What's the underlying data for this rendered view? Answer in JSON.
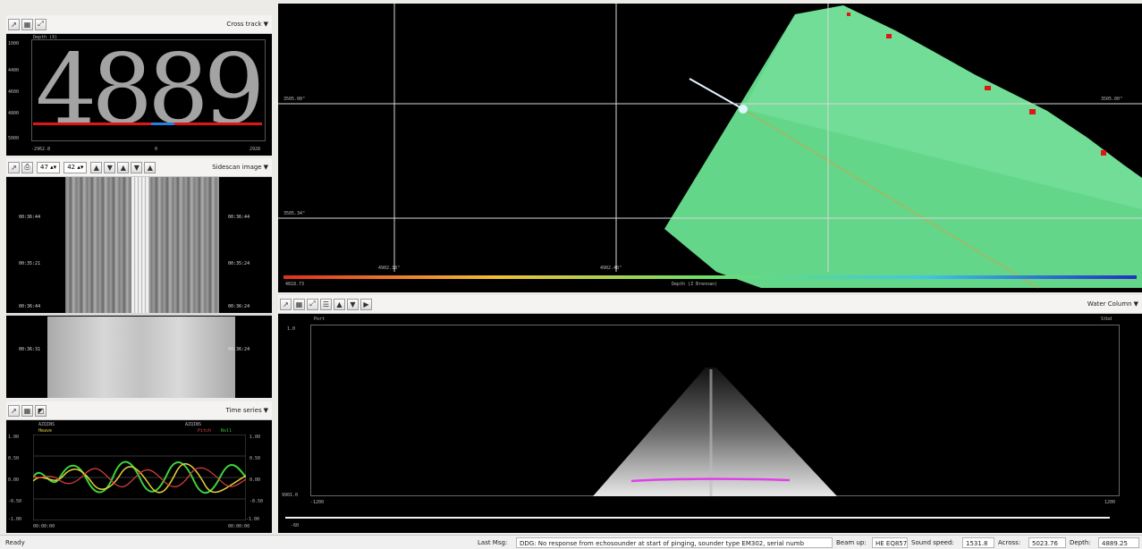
{
  "depth_panel": {
    "mode": "Cross track",
    "title": "Depth (X)",
    "big_value": "4889",
    "y_ticks": [
      "1000",
      "4400",
      "4600",
      "4800",
      "5000"
    ],
    "x_min": "-2962.8",
    "x_mid": "0",
    "x_max": "2928"
  },
  "side_scan": {
    "mode": "Sidescan image",
    "spin_a": "47",
    "spin_b": "42",
    "times_left": [
      "00:36:44",
      "00:35:21",
      "00:36:44",
      "00:36:31"
    ],
    "times_right": [
      "00:36:44",
      "00:35:24",
      "00:36:24",
      "00:36:24"
    ]
  },
  "time_series": {
    "mode": "Time series",
    "label_top": "AZQINS",
    "legend_left": "Heave",
    "legend_right_1": "Pitch",
    "legend_right_2": "Roll",
    "y_left": [
      "1.00",
      "0.50",
      "0.00",
      "-0.50",
      "-1.00"
    ],
    "y_right": [
      "1.00",
      "0.50",
      "0.00",
      "-0.50",
      "-1.00"
    ],
    "time_left": "00:00:00",
    "time_right": "00:00:00"
  },
  "map_view": {
    "lat_top": "3505.00\"",
    "lat_bottom": "3505.34\"",
    "lat_right": "3505.00\"",
    "lon_left": "4902.18\"",
    "lon_right": "4902.48\"",
    "scale_min": "4818.73",
    "scale_label": "Depth (Z Brennan)"
  },
  "water_column": {
    "mode": "Water Column",
    "port": "Port",
    "stbd": "Stbd",
    "y_top": "1.0",
    "y_bottom": "9901.0",
    "x_left": "-1200",
    "x_right": "1200",
    "bottom_tick": "-60"
  },
  "status": {
    "ready": "Ready",
    "last_msg_label": "Last Msg:",
    "last_msg": "DDG: No response from echosounder at start of pinging, sounder type EM302, serial numb",
    "beam_label": "Beam up:",
    "beam_value": "HE EQ857",
    "sound_label": "Sound speed:",
    "sound_value": "1531.8",
    "across_label": "Across:",
    "across_value": "5023.76",
    "depth_label": "Depth:",
    "depth_value": "4889.25"
  },
  "colors": {
    "swath": "#64d68a",
    "red_line": "#e21515",
    "blue_marker": "#2a7de1",
    "heave": "#e6d23a",
    "pitch": "#e04040",
    "roll": "#3cd43c",
    "bottom_trace": "#e040e8"
  }
}
